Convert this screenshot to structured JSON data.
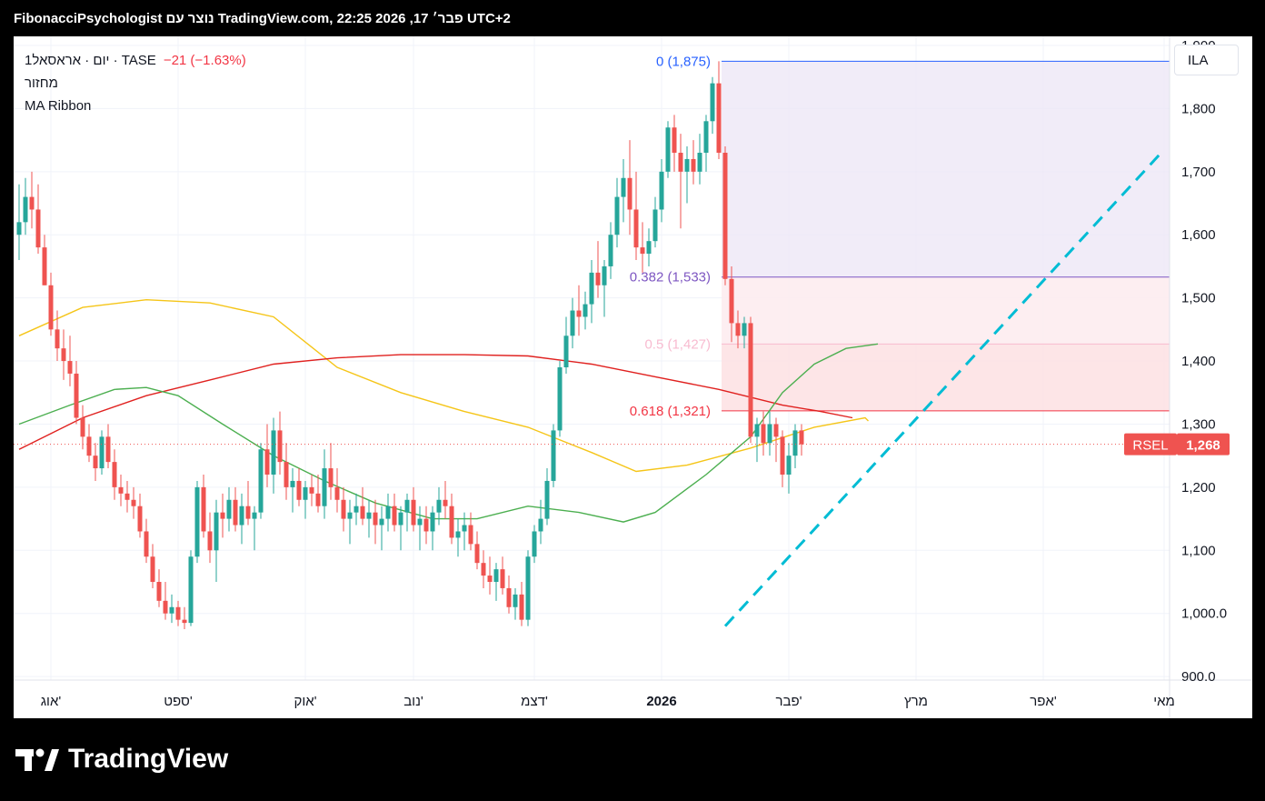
{
  "header": {
    "caption": "FibonacciPsychologist נוצר עם TradingView.com, 22:25 2026 ,17 פבר׳ UTC+2"
  },
  "legend": {
    "symbol": "1יום · אראסאל · TASE",
    "change": "−21 (−1.63%)",
    "volume_label": "מחזור",
    "indicator_label": "MA Ribbon"
  },
  "currency_button": "ILA",
  "footer": {
    "brand": "TradingView"
  },
  "colors": {
    "up": "#26a69a",
    "down": "#ef5350",
    "ma_yellow": "#f5c518",
    "ma_red": "#e0211f",
    "ma_green": "#4caf50",
    "trendline": "#00bcd4",
    "fib_zero": "#2962ff",
    "fib_382": "#7e57c2",
    "fib_05": "#f8bbd0",
    "fib_618": "#f23645"
  },
  "chart_data": {
    "type": "candlestick",
    "symbol": "RSEL",
    "last_price": 1268,
    "last_price_label": "1,268",
    "price_tag": "RSEL",
    "ylim": [
      880,
      1900
    ],
    "y_ticks": [
      900,
      1000,
      1100,
      1200,
      1300,
      1400,
      1500,
      1600,
      1700,
      1800,
      1900
    ],
    "y_tick_labels": [
      "900.0",
      "1,000.0",
      "1,100",
      "1,200",
      "1,300",
      "1,400",
      "1,500",
      "1,600",
      "1,700",
      "1,800",
      "1,900"
    ],
    "x_labels": [
      "אוג'",
      "ספט'",
      "אוק'",
      "נוב'",
      "דצמ'",
      "2026",
      "פבר'",
      "מרץ",
      "אפר'",
      "מאי"
    ],
    "x_label_bar_index": [
      5,
      25,
      45,
      62,
      81,
      101,
      121,
      141,
      161,
      180
    ],
    "fib_levels": [
      {
        "ratio_label": "0",
        "value": 1875,
        "label": "0 (1,875)"
      },
      {
        "ratio_label": "0.382",
        "value": 1533,
        "label": "0.382 (1,533)"
      },
      {
        "ratio_label": "0.5",
        "value": 1427,
        "label": "0.5 (1,427)"
      },
      {
        "ratio_label": "0.618",
        "value": 1321,
        "label": "0.618 (1,321)"
      }
    ],
    "fib_start_bar": 111,
    "trendline": {
      "start": {
        "bar": 111,
        "price": 980
      },
      "end": {
        "bar": 180,
        "price": 1735
      }
    },
    "candles": [
      {
        "o": 1600,
        "h": 1680,
        "l": 1560,
        "c": 1620
      },
      {
        "o": 1620,
        "h": 1690,
        "l": 1600,
        "c": 1660
      },
      {
        "o": 1660,
        "h": 1700,
        "l": 1610,
        "c": 1640
      },
      {
        "o": 1640,
        "h": 1680,
        "l": 1570,
        "c": 1580
      },
      {
        "o": 1580,
        "h": 1600,
        "l": 1520,
        "c": 1520
      },
      {
        "o": 1520,
        "h": 1540,
        "l": 1440,
        "c": 1450
      },
      {
        "o": 1450,
        "h": 1480,
        "l": 1400,
        "c": 1420
      },
      {
        "o": 1420,
        "h": 1450,
        "l": 1370,
        "c": 1400
      },
      {
        "o": 1400,
        "h": 1440,
        "l": 1360,
        "c": 1380
      },
      {
        "o": 1380,
        "h": 1400,
        "l": 1300,
        "c": 1310
      },
      {
        "o": 1310,
        "h": 1330,
        "l": 1260,
        "c": 1280
      },
      {
        "o": 1280,
        "h": 1300,
        "l": 1240,
        "c": 1250
      },
      {
        "o": 1250,
        "h": 1270,
        "l": 1210,
        "c": 1230
      },
      {
        "o": 1230,
        "h": 1290,
        "l": 1220,
        "c": 1280
      },
      {
        "o": 1280,
        "h": 1300,
        "l": 1230,
        "c": 1240
      },
      {
        "o": 1240,
        "h": 1260,
        "l": 1180,
        "c": 1200
      },
      {
        "o": 1200,
        "h": 1220,
        "l": 1170,
        "c": 1190
      },
      {
        "o": 1190,
        "h": 1210,
        "l": 1160,
        "c": 1180
      },
      {
        "o": 1180,
        "h": 1200,
        "l": 1150,
        "c": 1170
      },
      {
        "o": 1170,
        "h": 1190,
        "l": 1120,
        "c": 1130
      },
      {
        "o": 1130,
        "h": 1150,
        "l": 1080,
        "c": 1090
      },
      {
        "o": 1090,
        "h": 1110,
        "l": 1040,
        "c": 1050
      },
      {
        "o": 1050,
        "h": 1070,
        "l": 1010,
        "c": 1020
      },
      {
        "o": 1020,
        "h": 1050,
        "l": 990,
        "c": 1000
      },
      {
        "o": 1000,
        "h": 1030,
        "l": 985,
        "c": 1010
      },
      {
        "o": 1010,
        "h": 1020,
        "l": 980,
        "c": 990
      },
      {
        "o": 990,
        "h": 1010,
        "l": 975,
        "c": 985
      },
      {
        "o": 985,
        "h": 1100,
        "l": 980,
        "c": 1090
      },
      {
        "o": 1090,
        "h": 1210,
        "l": 1080,
        "c": 1200
      },
      {
        "o": 1200,
        "h": 1220,
        "l": 1120,
        "c": 1130
      },
      {
        "o": 1130,
        "h": 1160,
        "l": 1080,
        "c": 1100
      },
      {
        "o": 1100,
        "h": 1180,
        "l": 1050,
        "c": 1160
      },
      {
        "o": 1160,
        "h": 1190,
        "l": 1120,
        "c": 1150
      },
      {
        "o": 1150,
        "h": 1200,
        "l": 1130,
        "c": 1180
      },
      {
        "o": 1180,
        "h": 1200,
        "l": 1130,
        "c": 1140
      },
      {
        "o": 1140,
        "h": 1190,
        "l": 1110,
        "c": 1170
      },
      {
        "o": 1170,
        "h": 1210,
        "l": 1140,
        "c": 1150
      },
      {
        "o": 1150,
        "h": 1170,
        "l": 1100,
        "c": 1160
      },
      {
        "o": 1160,
        "h": 1270,
        "l": 1150,
        "c": 1260
      },
      {
        "o": 1260,
        "h": 1300,
        "l": 1200,
        "c": 1220
      },
      {
        "o": 1220,
        "h": 1310,
        "l": 1190,
        "c": 1290
      },
      {
        "o": 1290,
        "h": 1320,
        "l": 1220,
        "c": 1240
      },
      {
        "o": 1240,
        "h": 1270,
        "l": 1180,
        "c": 1200
      },
      {
        "o": 1200,
        "h": 1230,
        "l": 1160,
        "c": 1210
      },
      {
        "o": 1210,
        "h": 1230,
        "l": 1170,
        "c": 1180
      },
      {
        "o": 1180,
        "h": 1210,
        "l": 1150,
        "c": 1200
      },
      {
        "o": 1200,
        "h": 1220,
        "l": 1170,
        "c": 1190
      },
      {
        "o": 1190,
        "h": 1220,
        "l": 1160,
        "c": 1170
      },
      {
        "o": 1170,
        "h": 1260,
        "l": 1150,
        "c": 1230
      },
      {
        "o": 1230,
        "h": 1270,
        "l": 1180,
        "c": 1200
      },
      {
        "o": 1200,
        "h": 1230,
        "l": 1160,
        "c": 1180
      },
      {
        "o": 1180,
        "h": 1200,
        "l": 1130,
        "c": 1150
      },
      {
        "o": 1150,
        "h": 1180,
        "l": 1110,
        "c": 1160
      },
      {
        "o": 1160,
        "h": 1190,
        "l": 1140,
        "c": 1170
      },
      {
        "o": 1170,
        "h": 1200,
        "l": 1140,
        "c": 1150
      },
      {
        "o": 1150,
        "h": 1180,
        "l": 1120,
        "c": 1160
      },
      {
        "o": 1160,
        "h": 1180,
        "l": 1110,
        "c": 1140
      },
      {
        "o": 1140,
        "h": 1170,
        "l": 1100,
        "c": 1150
      },
      {
        "o": 1150,
        "h": 1190,
        "l": 1130,
        "c": 1170
      },
      {
        "o": 1170,
        "h": 1190,
        "l": 1130,
        "c": 1140
      },
      {
        "o": 1140,
        "h": 1170,
        "l": 1100,
        "c": 1160
      },
      {
        "o": 1160,
        "h": 1190,
        "l": 1130,
        "c": 1180
      },
      {
        "o": 1180,
        "h": 1200,
        "l": 1130,
        "c": 1140
      },
      {
        "o": 1140,
        "h": 1170,
        "l": 1100,
        "c": 1150
      },
      {
        "o": 1150,
        "h": 1170,
        "l": 1110,
        "c": 1130
      },
      {
        "o": 1130,
        "h": 1170,
        "l": 1100,
        "c": 1160
      },
      {
        "o": 1160,
        "h": 1200,
        "l": 1140,
        "c": 1180
      },
      {
        "o": 1180,
        "h": 1210,
        "l": 1150,
        "c": 1170
      },
      {
        "o": 1170,
        "h": 1190,
        "l": 1110,
        "c": 1120
      },
      {
        "o": 1120,
        "h": 1150,
        "l": 1090,
        "c": 1130
      },
      {
        "o": 1130,
        "h": 1160,
        "l": 1100,
        "c": 1140
      },
      {
        "o": 1140,
        "h": 1160,
        "l": 1100,
        "c": 1110
      },
      {
        "o": 1110,
        "h": 1130,
        "l": 1070,
        "c": 1080
      },
      {
        "o": 1080,
        "h": 1100,
        "l": 1040,
        "c": 1060
      },
      {
        "o": 1060,
        "h": 1090,
        "l": 1030,
        "c": 1050
      },
      {
        "o": 1050,
        "h": 1080,
        "l": 1020,
        "c": 1070
      },
      {
        "o": 1070,
        "h": 1090,
        "l": 1030,
        "c": 1040
      },
      {
        "o": 1040,
        "h": 1060,
        "l": 1000,
        "c": 1010
      },
      {
        "o": 1010,
        "h": 1040,
        "l": 990,
        "c": 1030
      },
      {
        "o": 1030,
        "h": 1050,
        "l": 980,
        "c": 990
      },
      {
        "o": 990,
        "h": 1100,
        "l": 980,
        "c": 1090
      },
      {
        "o": 1090,
        "h": 1140,
        "l": 1080,
        "c": 1130
      },
      {
        "o": 1130,
        "h": 1180,
        "l": 1110,
        "c": 1150
      },
      {
        "o": 1150,
        "h": 1230,
        "l": 1140,
        "c": 1210
      },
      {
        "o": 1210,
        "h": 1300,
        "l": 1200,
        "c": 1290
      },
      {
        "o": 1290,
        "h": 1400,
        "l": 1280,
        "c": 1390
      },
      {
        "o": 1390,
        "h": 1470,
        "l": 1380,
        "c": 1440
      },
      {
        "o": 1440,
        "h": 1500,
        "l": 1420,
        "c": 1480
      },
      {
        "o": 1480,
        "h": 1520,
        "l": 1440,
        "c": 1470
      },
      {
        "o": 1470,
        "h": 1510,
        "l": 1450,
        "c": 1490
      },
      {
        "o": 1490,
        "h": 1560,
        "l": 1460,
        "c": 1540
      },
      {
        "o": 1540,
        "h": 1590,
        "l": 1500,
        "c": 1520
      },
      {
        "o": 1520,
        "h": 1560,
        "l": 1470,
        "c": 1550
      },
      {
        "o": 1550,
        "h": 1620,
        "l": 1530,
        "c": 1600
      },
      {
        "o": 1600,
        "h": 1690,
        "l": 1580,
        "c": 1660
      },
      {
        "o": 1660,
        "h": 1720,
        "l": 1620,
        "c": 1690
      },
      {
        "o": 1690,
        "h": 1750,
        "l": 1600,
        "c": 1640
      },
      {
        "o": 1640,
        "h": 1700,
        "l": 1560,
        "c": 1580
      },
      {
        "o": 1580,
        "h": 1620,
        "l": 1540,
        "c": 1570
      },
      {
        "o": 1570,
        "h": 1610,
        "l": 1550,
        "c": 1590
      },
      {
        "o": 1590,
        "h": 1660,
        "l": 1580,
        "c": 1640
      },
      {
        "o": 1640,
        "h": 1720,
        "l": 1620,
        "c": 1700
      },
      {
        "o": 1700,
        "h": 1780,
        "l": 1690,
        "c": 1770
      },
      {
        "o": 1770,
        "h": 1790,
        "l": 1700,
        "c": 1730
      },
      {
        "o": 1730,
        "h": 1760,
        "l": 1610,
        "c": 1700
      },
      {
        "o": 1700,
        "h": 1740,
        "l": 1650,
        "c": 1720
      },
      {
        "o": 1720,
        "h": 1750,
        "l": 1680,
        "c": 1700
      },
      {
        "o": 1700,
        "h": 1760,
        "l": 1680,
        "c": 1730
      },
      {
        "o": 1730,
        "h": 1790,
        "l": 1700,
        "c": 1780
      },
      {
        "o": 1780,
        "h": 1850,
        "l": 1760,
        "c": 1840
      },
      {
        "o": 1840,
        "h": 1875,
        "l": 1720,
        "c": 1730
      },
      {
        "o": 1730,
        "h": 1740,
        "l": 1520,
        "c": 1530
      },
      {
        "o": 1530,
        "h": 1550,
        "l": 1430,
        "c": 1460
      },
      {
        "o": 1460,
        "h": 1480,
        "l": 1420,
        "c": 1440
      },
      {
        "o": 1440,
        "h": 1470,
        "l": 1420,
        "c": 1460
      },
      {
        "o": 1460,
        "h": 1470,
        "l": 1270,
        "c": 1280
      },
      {
        "o": 1280,
        "h": 1310,
        "l": 1240,
        "c": 1300
      },
      {
        "o": 1300,
        "h": 1320,
        "l": 1250,
        "c": 1270
      },
      {
        "o": 1270,
        "h": 1320,
        "l": 1250,
        "c": 1300
      },
      {
        "o": 1300,
        "h": 1310,
        "l": 1240,
        "c": 1280
      },
      {
        "o": 1280,
        "h": 1290,
        "l": 1200,
        "c": 1220
      },
      {
        "o": 1220,
        "h": 1270,
        "l": 1190,
        "c": 1250
      },
      {
        "o": 1250,
        "h": 1300,
        "l": 1230,
        "c": 1290
      },
      {
        "o": 1290,
        "h": 1300,
        "l": 1250,
        "c": 1268
      }
    ],
    "ma_yellow": [
      [
        0,
        1440
      ],
      [
        10,
        1485
      ],
      [
        20,
        1497
      ],
      [
        30,
        1492
      ],
      [
        40,
        1470
      ],
      [
        50,
        1390
      ],
      [
        60,
        1350
      ],
      [
        70,
        1320
      ],
      [
        80,
        1295
      ],
      [
        90,
        1255
      ],
      [
        97,
        1225
      ],
      [
        105,
        1235
      ],
      [
        115,
        1262
      ],
      [
        125,
        1295
      ],
      [
        133,
        1310
      ],
      [
        133.5,
        1305
      ]
    ],
    "ma_red": [
      [
        0,
        1260
      ],
      [
        10,
        1310
      ],
      [
        20,
        1345
      ],
      [
        30,
        1370
      ],
      [
        40,
        1395
      ],
      [
        50,
        1405
      ],
      [
        60,
        1410
      ],
      [
        70,
        1410
      ],
      [
        80,
        1408
      ],
      [
        90,
        1395
      ],
      [
        100,
        1375
      ],
      [
        110,
        1355
      ],
      [
        120,
        1330
      ],
      [
        126,
        1320
      ],
      [
        131,
        1310
      ]
    ],
    "ma_green": [
      [
        0,
        1300
      ],
      [
        8,
        1330
      ],
      [
        15,
        1355
      ],
      [
        20,
        1358
      ],
      [
        25,
        1345
      ],
      [
        32,
        1300
      ],
      [
        40,
        1250
      ],
      [
        48,
        1210
      ],
      [
        56,
        1175
      ],
      [
        65,
        1150
      ],
      [
        72,
        1150
      ],
      [
        80,
        1170
      ],
      [
        88,
        1160
      ],
      [
        95,
        1145
      ],
      [
        100,
        1160
      ],
      [
        108,
        1220
      ],
      [
        115,
        1280
      ],
      [
        120,
        1350
      ],
      [
        125,
        1395
      ],
      [
        130,
        1420
      ],
      [
        135,
        1427
      ]
    ]
  }
}
